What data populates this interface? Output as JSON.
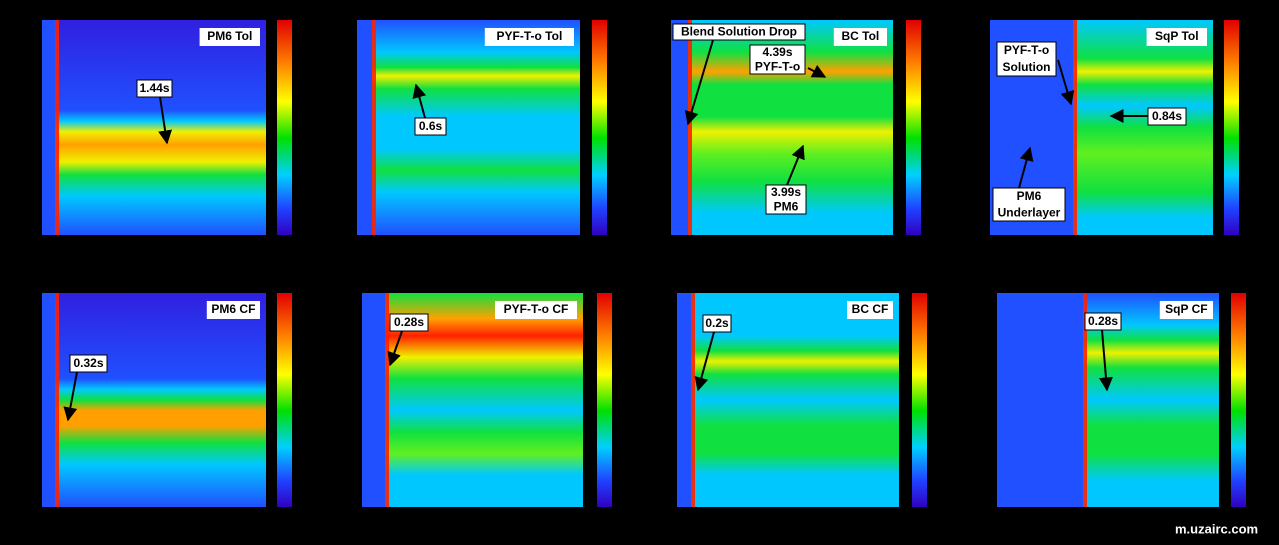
{
  "panels": [
    {
      "title": "PM6 Tol",
      "labels": [
        {
          "lines": [
            "1.44s"
          ]
        }
      ]
    },
    {
      "title": "PYF-T-o Tol",
      "labels": [
        {
          "lines": [
            "0.6s"
          ]
        }
      ]
    },
    {
      "title": "BC Tol",
      "labels": [
        {
          "lines": [
            "Blend Solution Drop"
          ]
        },
        {
          "lines": [
            "4.39s",
            "PYF-T-o"
          ]
        },
        {
          "lines": [
            "3.99s",
            "PM6"
          ]
        }
      ]
    },
    {
      "title": "SqP Tol",
      "labels": [
        {
          "lines": [
            "PYF-T-o",
            "Solution"
          ]
        },
        {
          "lines": [
            "0.84s"
          ]
        },
        {
          "lines": [
            "PM6",
            "Underlayer"
          ]
        }
      ]
    },
    {
      "title": "PM6 CF",
      "labels": [
        {
          "lines": [
            "0.32s"
          ]
        }
      ]
    },
    {
      "title": "PYF-T-o CF",
      "labels": [
        {
          "lines": [
            "0.28s"
          ]
        }
      ]
    },
    {
      "title": "BC CF",
      "labels": [
        {
          "lines": [
            "0.2s"
          ]
        }
      ]
    },
    {
      "title": "SqP CF",
      "labels": [
        {
          "lines": [
            "0.28s"
          ]
        }
      ]
    }
  ],
  "watermark": "m.uzairc.com"
}
